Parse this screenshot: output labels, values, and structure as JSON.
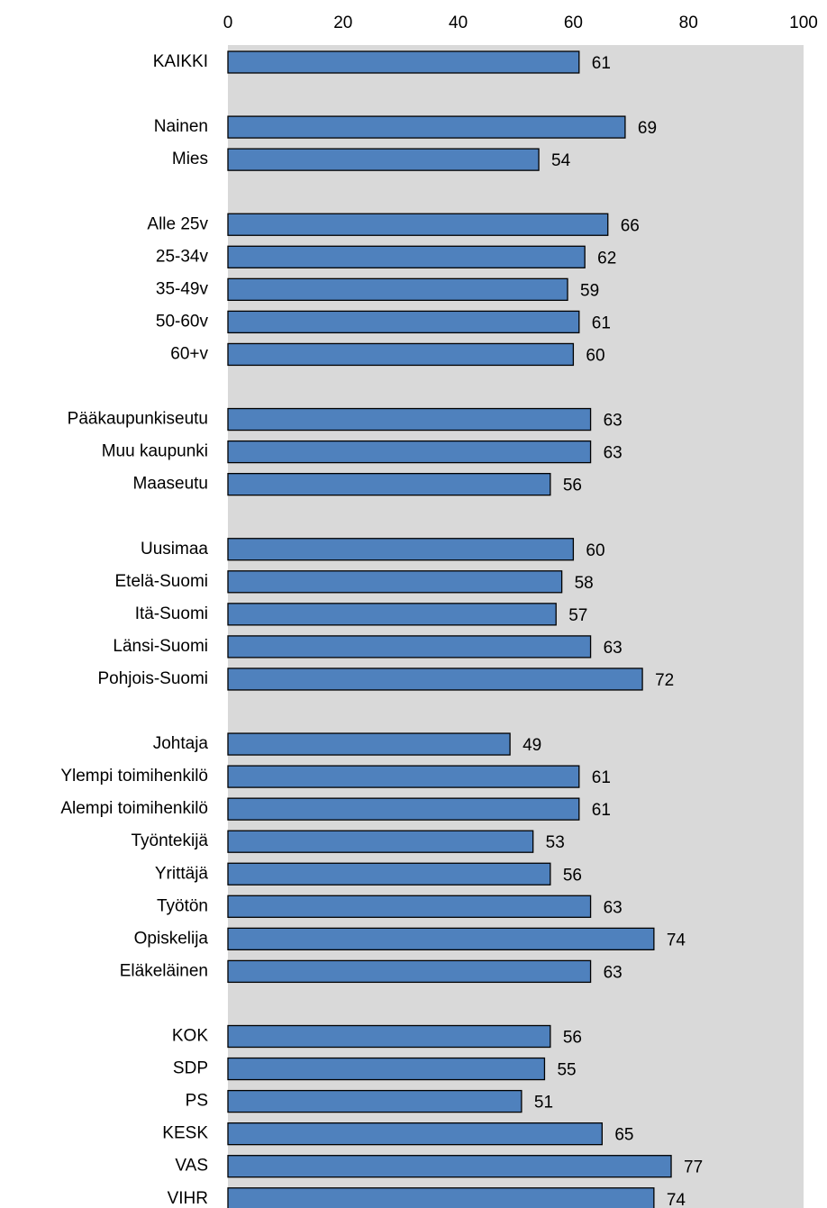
{
  "chart_data": {
    "type": "bar",
    "orientation": "horizontal",
    "xlim": [
      0,
      100
    ],
    "x_ticks": [
      0,
      20,
      40,
      60,
      80,
      100
    ],
    "x_tick_position": "top",
    "grid": false,
    "background_color": "#d9d9d9",
    "bar_color": "#4f81bd",
    "bar_border_color": "#000000",
    "title": "",
    "xlabel": "",
    "ylabel": "",
    "groups": [
      {
        "categories": [
          "KAIKKI"
        ],
        "values": [
          61
        ]
      },
      {
        "categories": [
          "Nainen",
          "Mies"
        ],
        "values": [
          69,
          54
        ]
      },
      {
        "categories": [
          "Alle 25v",
          "25-34v",
          "35-49v",
          "50-60v",
          "60+v"
        ],
        "values": [
          66,
          62,
          59,
          61,
          60
        ]
      },
      {
        "categories": [
          "Pääkaupunkiseutu",
          "Muu kaupunki",
          "Maaseutu"
        ],
        "values": [
          63,
          63,
          56
        ]
      },
      {
        "categories": [
          "Uusimaa",
          "Etelä-Suomi",
          "Itä-Suomi",
          "Länsi-Suomi",
          "Pohjois-Suomi"
        ],
        "values": [
          60,
          58,
          57,
          63,
          72
        ]
      },
      {
        "categories": [
          "Johtaja",
          "Ylempi toimihenkilö",
          "Alempi toimihenkilö",
          "Työntekijä",
          "Yrittäjä",
          "Työtön",
          "Opiskelija",
          "Eläkeläinen"
        ],
        "values": [
          49,
          61,
          61,
          53,
          56,
          63,
          74,
          63
        ]
      },
      {
        "categories": [
          "KOK",
          "SDP",
          "PS",
          "KESK",
          "VAS",
          "VIHR"
        ],
        "values": [
          56,
          55,
          51,
          65,
          77,
          74
        ]
      }
    ]
  }
}
